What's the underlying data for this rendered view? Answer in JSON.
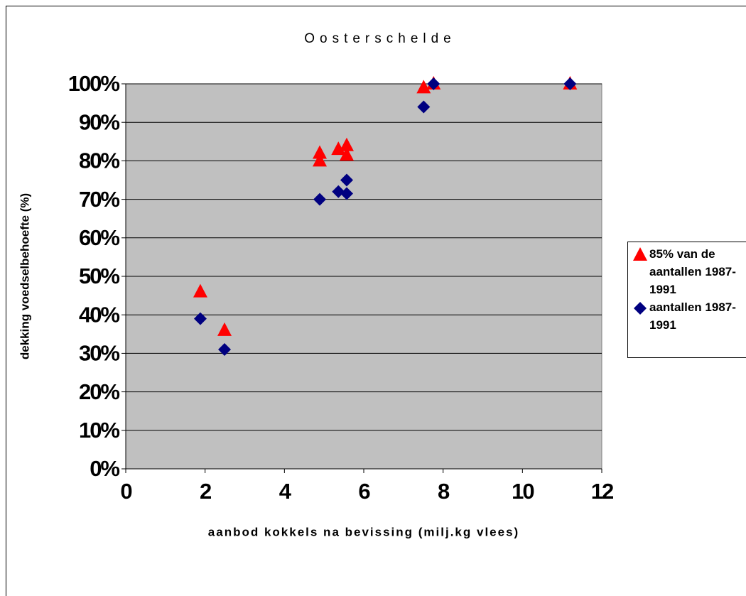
{
  "chart_data": {
    "type": "scatter",
    "title": "Oosterschelde",
    "x_label": "aanbod kokkels na bevissing (milj.kg vlees)",
    "y_label": "dekking voedselbehoefte (%)",
    "xlim": [
      0,
      12
    ],
    "xticks": [
      0,
      2,
      4,
      6,
      8,
      10,
      12
    ],
    "ylim": [
      0,
      100
    ],
    "yticks": [
      {
        "value": 0,
        "label": "0%"
      },
      {
        "value": 10,
        "label": "10%"
      },
      {
        "value": 20,
        "label": "20%"
      },
      {
        "value": 30,
        "label": "30%"
      },
      {
        "value": 40,
        "label": "40%"
      },
      {
        "value": 50,
        "label": "50%"
      },
      {
        "value": 60,
        "label": "60%"
      },
      {
        "value": 70,
        "label": "70%"
      },
      {
        "value": 80,
        "label": "80%"
      },
      {
        "value": 90,
        "label": "90%"
      },
      {
        "value": 100,
        "label": "100%"
      }
    ],
    "grid": true,
    "legend": "right",
    "series": [
      {
        "name": "85% van de aantallen 1987-1991",
        "color": "#ff0000",
        "marker": "triangle",
        "x": [
          1.88,
          2.49,
          4.89,
          4.89,
          5.36,
          5.57,
          5.57,
          7.51,
          7.76,
          11.2
        ],
        "values": [
          46,
          36,
          82,
          80,
          83,
          84,
          81.5,
          99,
          100,
          100
        ]
      },
      {
        "name": "aantallen 1987-1991",
        "color": "#000080",
        "marker": "diamond",
        "x": [
          1.88,
          2.49,
          4.89,
          5.36,
          5.57,
          5.57,
          7.51,
          7.76,
          11.2
        ],
        "values": [
          39,
          31,
          70,
          72,
          75,
          71.5,
          94,
          100,
          100
        ]
      }
    ]
  }
}
